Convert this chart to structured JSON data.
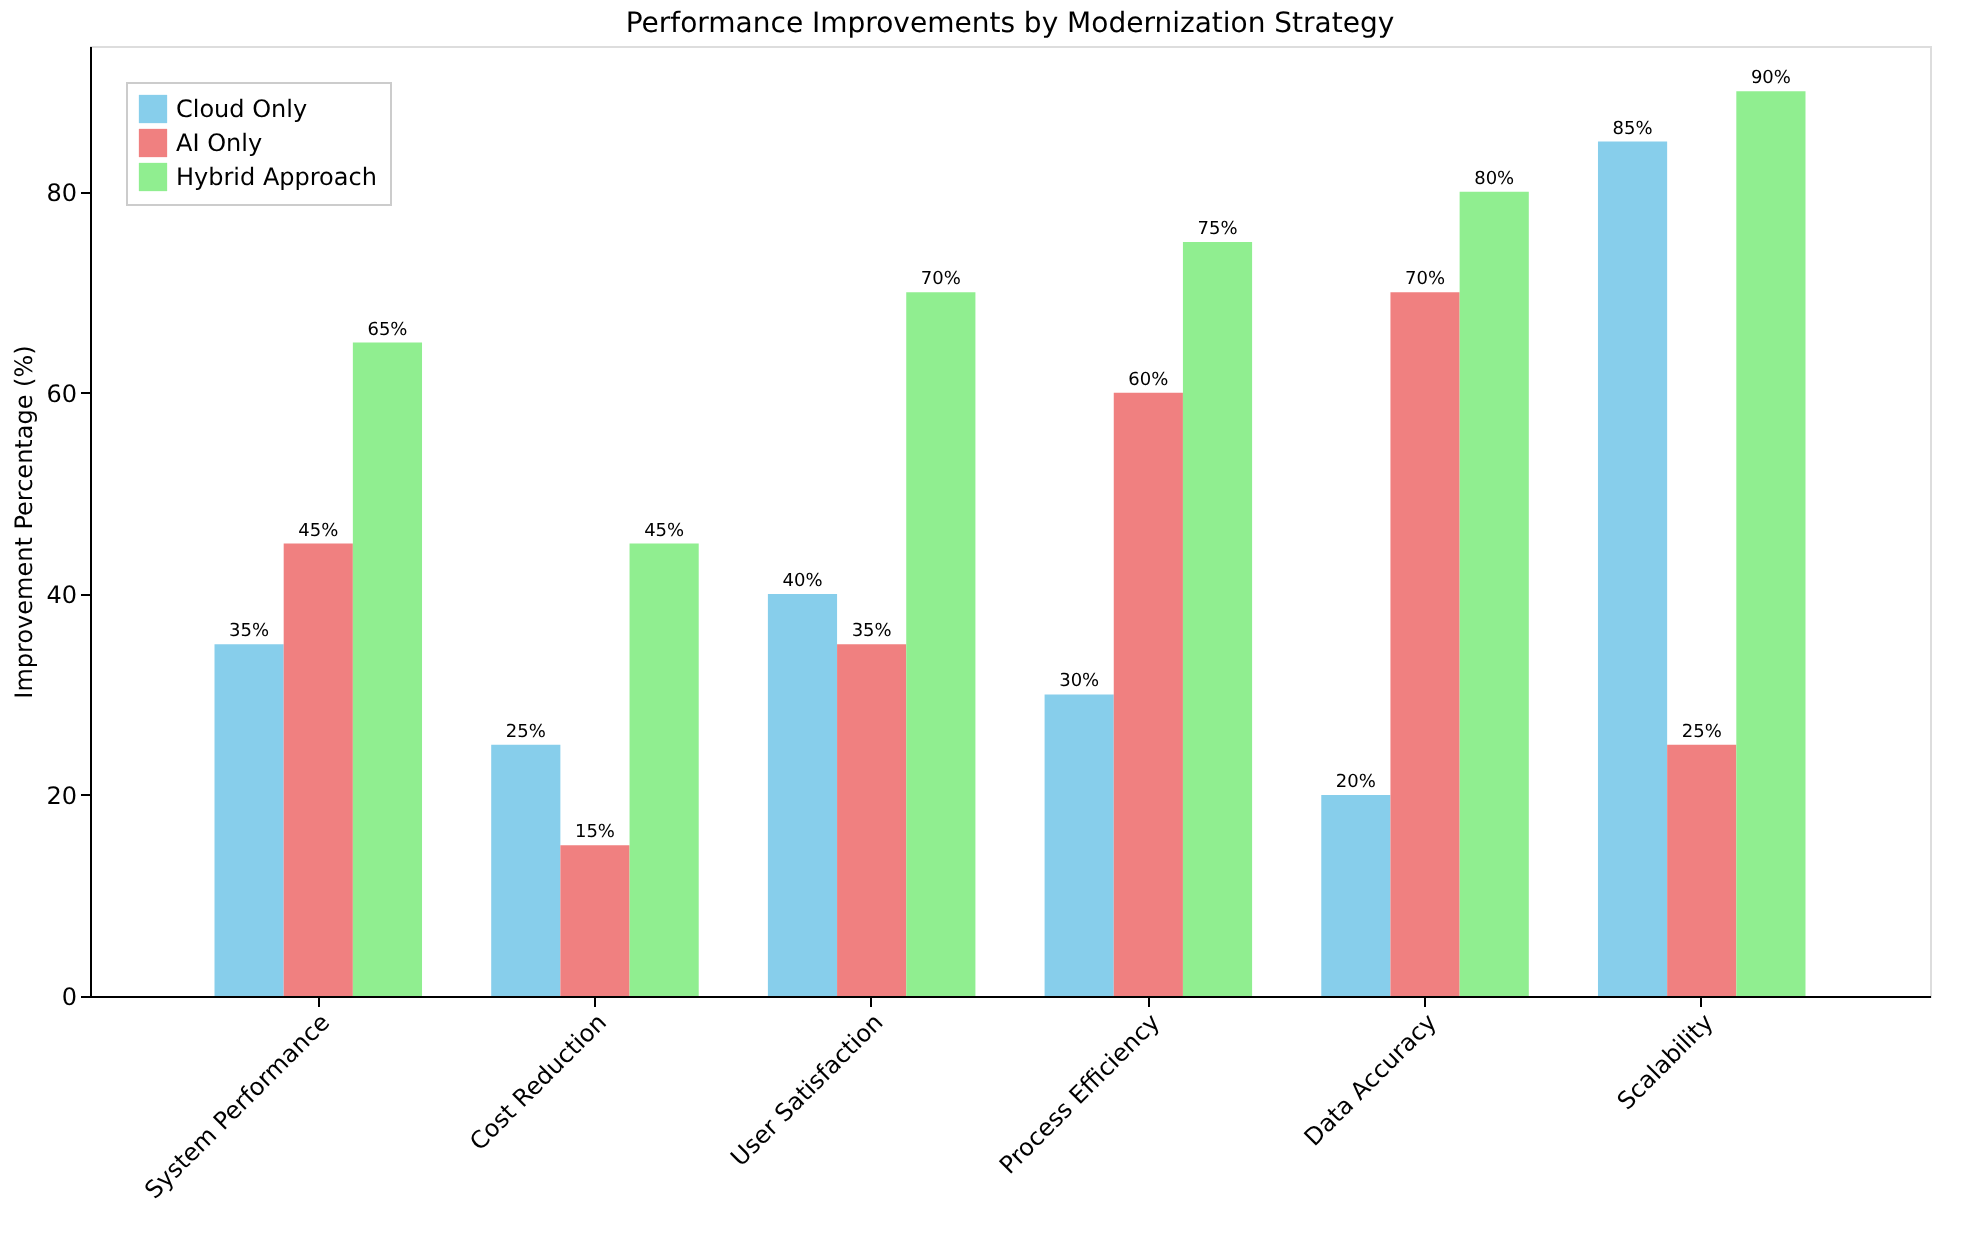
{
  "chart_data": {
    "type": "bar",
    "title": "Performance Improvements by Modernization Strategy",
    "ylabel": "Improvement Percentage (%)",
    "categories": [
      "System Performance",
      "Cost Reduction",
      "User Satisfaction",
      "Process Efficiency",
      "Data Accuracy",
      "Scalability"
    ],
    "series": [
      {
        "name": "Cloud Only",
        "color": "#87ceeb",
        "values": [
          35,
          25,
          40,
          30,
          20,
          85
        ],
        "value_labels": [
          "35%",
          "25%",
          "40%",
          "30%",
          "20%",
          "85%"
        ]
      },
      {
        "name": "AI Only",
        "color": "#f08080",
        "values": [
          45,
          15,
          35,
          60,
          70,
          25
        ],
        "value_labels": [
          "45%",
          "15%",
          "35%",
          "60%",
          "70%",
          "25%"
        ]
      },
      {
        "name": "Hybrid Approach",
        "color": "#90ee90",
        "values": [
          65,
          45,
          70,
          75,
          80,
          90
        ],
        "value_labels": [
          "65%",
          "45%",
          "70%",
          "75%",
          "80%",
          "90%"
        ]
      }
    ],
    "ylim": [
      0,
      94.5
    ],
    "yticks": [
      0,
      20,
      40,
      60,
      80
    ],
    "grid": false,
    "legend": "top left"
  }
}
